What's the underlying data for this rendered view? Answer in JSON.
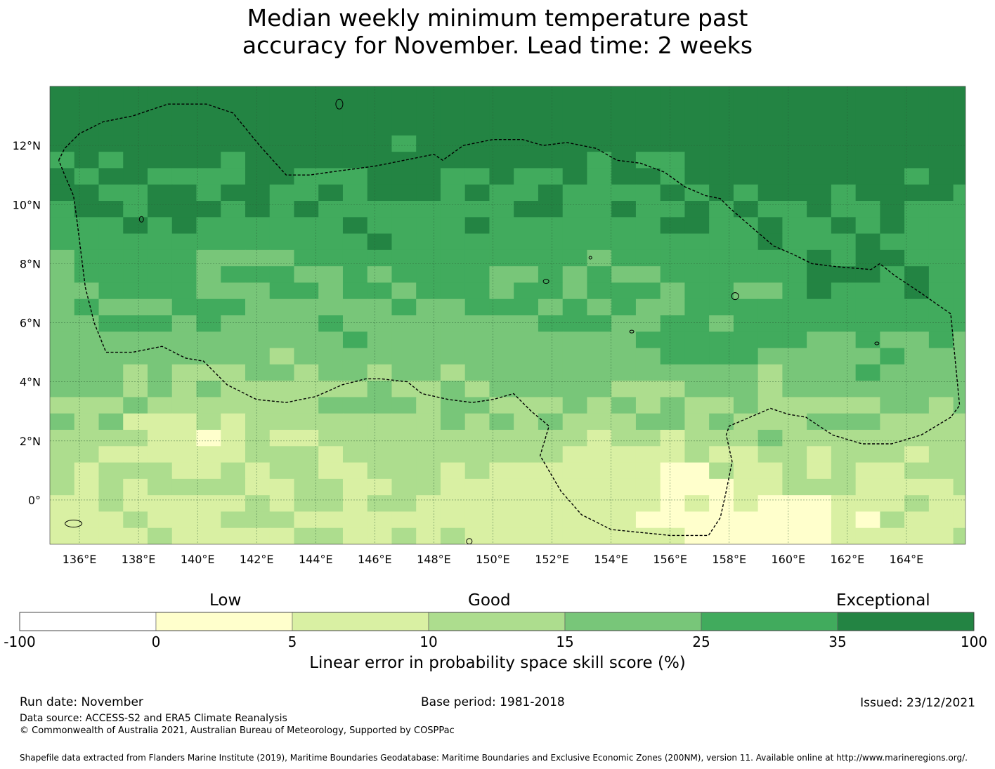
{
  "title": {
    "line1": "Median weekly minimum temperature past",
    "line2": "accuracy for November. Lead time: 2 weeks"
  },
  "map": {
    "lon_range": [
      135.0,
      166.0
    ],
    "lat_range": [
      -1.5,
      14.0
    ],
    "lon_ticks": [
      {
        "value": 136,
        "label": "136°E"
      },
      {
        "value": 138,
        "label": "138°E"
      },
      {
        "value": 140,
        "label": "140°E"
      },
      {
        "value": 142,
        "label": "142°E"
      },
      {
        "value": 144,
        "label": "144°E"
      },
      {
        "value": 146,
        "label": "146°E"
      },
      {
        "value": 148,
        "label": "148°E"
      },
      {
        "value": 150,
        "label": "150°E"
      },
      {
        "value": 152,
        "label": "152°E"
      },
      {
        "value": 154,
        "label": "154°E"
      },
      {
        "value": 156,
        "label": "156°E"
      },
      {
        "value": 158,
        "label": "158°E"
      },
      {
        "value": 160,
        "label": "160°E"
      },
      {
        "value": 162,
        "label": "162°E"
      },
      {
        "value": 164,
        "label": "164°E"
      }
    ],
    "lat_ticks": [
      {
        "value": 12,
        "label": "12°N"
      },
      {
        "value": 10,
        "label": "10°N"
      },
      {
        "value": 8,
        "label": "8°N"
      },
      {
        "value": 6,
        "label": "6°N"
      },
      {
        "value": 4,
        "label": "4°N"
      },
      {
        "value": 2,
        "label": "2°N"
      },
      {
        "value": 0,
        "label": "0°"
      }
    ],
    "eez_boundary": [
      [
        135.3,
        11.5
      ],
      [
        135.5,
        11.9
      ],
      [
        136.0,
        12.4
      ],
      [
        136.8,
        12.8
      ],
      [
        137.8,
        13.0
      ],
      [
        139.0,
        13.4
      ],
      [
        140.3,
        13.4
      ],
      [
        141.2,
        13.1
      ],
      [
        142.1,
        12.0
      ],
      [
        143.0,
        11.0
      ],
      [
        143.8,
        11.0
      ],
      [
        144.5,
        11.1
      ],
      [
        146.0,
        11.3
      ],
      [
        147.5,
        11.6
      ],
      [
        148.0,
        11.7
      ],
      [
        148.3,
        11.5
      ],
      [
        149.0,
        12.0
      ],
      [
        150.0,
        12.2
      ],
      [
        151.0,
        12.2
      ],
      [
        151.7,
        12.0
      ],
      [
        152.5,
        12.1
      ],
      [
        153.5,
        11.9
      ],
      [
        154.2,
        11.5
      ],
      [
        155.0,
        11.4
      ],
      [
        155.8,
        11.1
      ],
      [
        156.5,
        10.6
      ],
      [
        157.2,
        10.3
      ],
      [
        157.7,
        10.2
      ],
      [
        158.0,
        9.9
      ],
      [
        158.8,
        9.2
      ],
      [
        159.5,
        8.6
      ],
      [
        160.2,
        8.3
      ],
      [
        160.8,
        8.0
      ],
      [
        161.6,
        7.9
      ],
      [
        162.8,
        7.8
      ],
      [
        163.1,
        8.0
      ],
      [
        163.6,
        7.6
      ],
      [
        164.5,
        7.0
      ],
      [
        165.5,
        6.3
      ],
      [
        165.8,
        3.2
      ],
      [
        165.5,
        2.8
      ],
      [
        164.5,
        2.2
      ],
      [
        163.5,
        1.9
      ],
      [
        162.5,
        1.9
      ],
      [
        161.5,
        2.2
      ],
      [
        160.6,
        2.8
      ],
      [
        160.0,
        2.9
      ],
      [
        159.4,
        3.1
      ],
      [
        158.7,
        2.8
      ],
      [
        158.0,
        2.5
      ],
      [
        157.9,
        2.2
      ],
      [
        158.1,
        1.3
      ],
      [
        157.9,
        0.3
      ],
      [
        157.7,
        -0.6
      ],
      [
        157.3,
        -1.2
      ],
      [
        156.0,
        -1.2
      ],
      [
        154.0,
        -1.0
      ],
      [
        153.0,
        -0.5
      ],
      [
        152.3,
        0.3
      ],
      [
        151.6,
        1.5
      ],
      [
        151.9,
        2.5
      ],
      [
        151.3,
        3.0
      ],
      [
        150.7,
        3.6
      ],
      [
        150.0,
        3.4
      ],
      [
        149.3,
        3.3
      ],
      [
        148.5,
        3.4
      ],
      [
        147.6,
        3.6
      ],
      [
        147.1,
        4.0
      ],
      [
        146.2,
        4.1
      ],
      [
        145.7,
        4.1
      ],
      [
        144.9,
        3.9
      ],
      [
        144.0,
        3.5
      ],
      [
        143.0,
        3.3
      ],
      [
        142.0,
        3.4
      ],
      [
        141.0,
        3.9
      ],
      [
        140.2,
        4.7
      ],
      [
        139.6,
        4.8
      ],
      [
        138.8,
        5.2
      ],
      [
        137.8,
        5.0
      ],
      [
        136.9,
        5.0
      ],
      [
        136.5,
        6.0
      ],
      [
        136.2,
        7.2
      ],
      [
        136.1,
        8.0
      ],
      [
        135.9,
        9.6
      ],
      [
        135.8,
        10.3
      ],
      [
        135.5,
        11.0
      ],
      [
        135.3,
        11.5
      ]
    ]
  },
  "legend": {
    "low": "Low",
    "good": "Good",
    "exceptional": "Exceptional",
    "ticks": [
      "-100",
      "0",
      "5",
      "10",
      "15",
      "25",
      "35",
      "100"
    ],
    "colors": [
      "#ffffff",
      "#ffffcc",
      "#d9f0a3",
      "#addd8e",
      "#78c679",
      "#41ab5d",
      "#238443"
    ],
    "axis_title": "Linear error in probability space skill score (%)"
  },
  "footer": {
    "run_date": "Run date: November",
    "base_period": "Base period: 1981-2018",
    "issued": "Issued: 23/12/2021",
    "data_source": "Data source: ACCESS-S2 and ERA5 Climate Reanalysis",
    "copyright": "© Commonwealth of Australia 2021, Australian Bureau of Meteorology, Supported by COSPPac",
    "shapefile": "Shapefile data extracted from Flanders Marine Institute (2019), Maritime Boundaries Geodatabase: Maritime Boundaries and Exclusive Economic Zones (200NM), version 11. Available online at http://www.marineregions.org/."
  }
}
